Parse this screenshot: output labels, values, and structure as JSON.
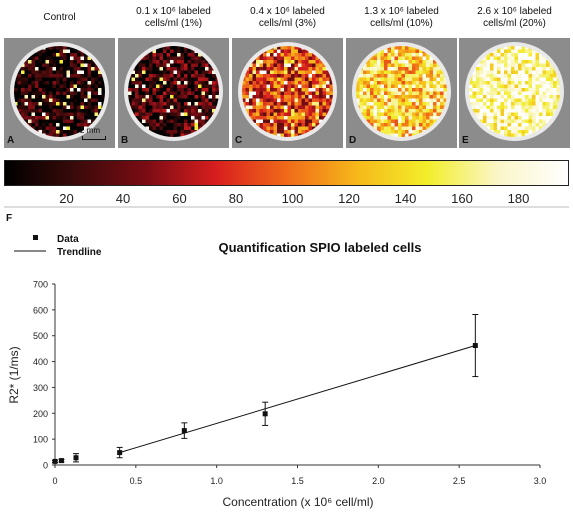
{
  "panels": [
    {
      "title_line1": "Control",
      "title_line2": "",
      "letter": "A",
      "intensity": 0.05,
      "scale_label": "2 mm"
    },
    {
      "title_line1": "0.1 x 10⁶ labeled",
      "title_line2": "cells/ml (1%)",
      "letter": "B",
      "intensity": 0.12
    },
    {
      "title_line1": "0.4 x 10⁶ labeled",
      "title_line2": "cells/ml (3%)",
      "letter": "C",
      "intensity": 0.42
    },
    {
      "title_line1": "1.3 x 10⁶ labeled",
      "title_line2": "cells/ml (10%)",
      "letter": "D",
      "intensity": 0.68
    },
    {
      "title_line1": "2.6 x 10⁶ labeled",
      "title_line2": "cells/ml (20%)",
      "letter": "E",
      "intensity": 0.88
    }
  ],
  "colorbar": {
    "ticks": [
      "20",
      "40",
      "60",
      "80",
      "100",
      "120",
      "140",
      "160",
      "180"
    ],
    "range": [
      0,
      200
    ],
    "colors": [
      "#000000",
      "#3a0a0a",
      "#7a0c14",
      "#d81e1e",
      "#f06a1a",
      "#f6b81a",
      "#f2ee2a",
      "#faf6c8",
      "#ffffff"
    ]
  },
  "chart_data": {
    "panel_letter": "F",
    "type": "scatter",
    "title": "Quantification SPIO labeled cells",
    "xlabel": "Concentration (x 10⁶ cell/ml)",
    "ylabel": "R2* (1/ms)",
    "xlim": [
      0,
      3.0
    ],
    "ylim": [
      0,
      700
    ],
    "xticks": [
      "0",
      "0.5",
      "1.0",
      "1.5",
      "2.0",
      "2.5",
      "3.0"
    ],
    "yticks": [
      "0",
      "100",
      "200",
      "300",
      "400",
      "500",
      "600",
      "700"
    ],
    "legend": {
      "placement": "top-left",
      "data_label": "Data",
      "trend_label": "Trendline"
    },
    "series": [
      {
        "name": "Data",
        "x": [
          0,
          0.04,
          0.13,
          0.4,
          0.8,
          1.3,
          2.6
        ],
        "y": [
          14,
          17,
          28,
          48,
          133,
          198,
          462
        ],
        "yerr": [
          4,
          5,
          16,
          20,
          30,
          45,
          120
        ]
      }
    ],
    "trendline": {
      "name": "Trendline",
      "x": [
        0.4,
        2.6
      ],
      "y": [
        48,
        462
      ]
    }
  }
}
